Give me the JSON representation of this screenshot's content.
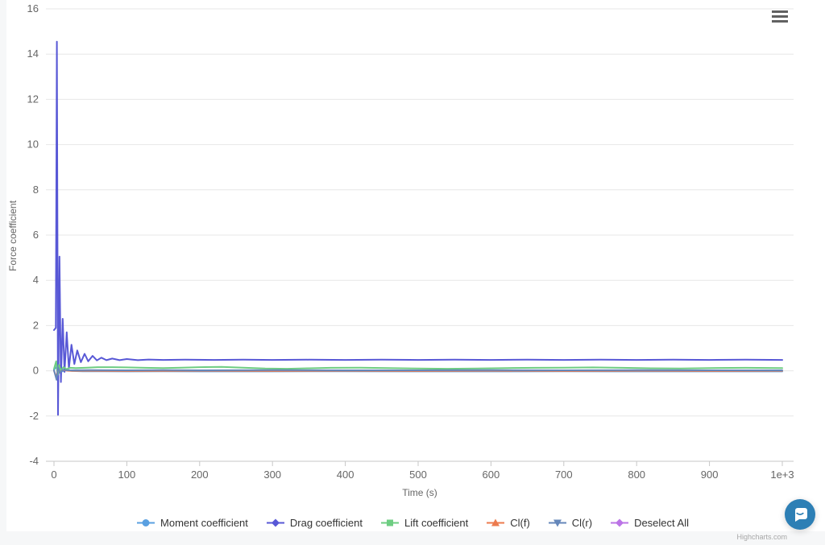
{
  "page": {
    "background_color": "#f6f7f8",
    "card_color": "#ffffff"
  },
  "chart": {
    "credits": "Highcharts.com",
    "menu_icon": "hamburger-icon",
    "gridline_color": "#e7e7e7",
    "axis_line_color": "#c7c7c7",
    "tick_label_color": "#666666",
    "axis_title_color": "#666666",
    "legend_text_color": "#333333"
  },
  "chat": {
    "icon": "chat-bubble-smile-icon",
    "color": "#2d7fb5"
  },
  "chart_data": {
    "type": "line",
    "title": "",
    "xlabel": "Time (s)",
    "ylabel": "Force coefficient",
    "xlim": [
      0,
      1000
    ],
    "ylim": [
      -4,
      16
    ],
    "grid": "horizontal",
    "legend_position": "bottom",
    "y_ticks": [
      16,
      14,
      12,
      10,
      8,
      6,
      4,
      2,
      0,
      -2,
      -4
    ],
    "x_ticks": [
      {
        "value": 0,
        "label": "0"
      },
      {
        "value": 100,
        "label": "100"
      },
      {
        "value": 200,
        "label": "200"
      },
      {
        "value": 300,
        "label": "300"
      },
      {
        "value": 400,
        "label": "400"
      },
      {
        "value": 500,
        "label": "500"
      },
      {
        "value": 600,
        "label": "600"
      },
      {
        "value": 700,
        "label": "700"
      },
      {
        "value": 800,
        "label": "800"
      },
      {
        "value": 900,
        "label": "900"
      },
      {
        "value": 1000,
        "label": "1e+3"
      }
    ],
    "series": [
      {
        "name": "Moment coefficient",
        "color": "#5aa0e1",
        "marker": "circle",
        "points": [
          [
            0,
            0.05
          ],
          [
            3.5,
            0.18
          ],
          [
            5.5,
            -0.12
          ],
          [
            8,
            0.08
          ],
          [
            11,
            -0.03
          ],
          [
            16,
            0.02
          ],
          [
            25,
            -0.01
          ],
          [
            40,
            -0.02
          ],
          [
            70,
            -0.02
          ],
          [
            100,
            -0.03
          ],
          [
            150,
            -0.02
          ],
          [
            200,
            -0.03
          ],
          [
            300,
            -0.03
          ],
          [
            400,
            -0.02
          ],
          [
            500,
            -0.03
          ],
          [
            600,
            -0.03
          ],
          [
            700,
            -0.02
          ],
          [
            800,
            -0.03
          ],
          [
            900,
            -0.03
          ],
          [
            1000,
            -0.03
          ]
        ]
      },
      {
        "name": "Drag coefficient",
        "color": "#5858d6",
        "marker": "diamond",
        "points": [
          [
            0,
            1.8
          ],
          [
            2.5,
            1.9
          ],
          [
            4,
            14.55
          ],
          [
            5.5,
            -1.95
          ],
          [
            7.5,
            5.05
          ],
          [
            9.5,
            -0.5
          ],
          [
            12,
            2.3
          ],
          [
            14.5,
            -0.05
          ],
          [
            17.5,
            1.7
          ],
          [
            20.5,
            0.1
          ],
          [
            24,
            1.15
          ],
          [
            28,
            0.3
          ],
          [
            32,
            0.9
          ],
          [
            37,
            0.38
          ],
          [
            42,
            0.75
          ],
          [
            47,
            0.42
          ],
          [
            53,
            0.66
          ],
          [
            59,
            0.46
          ],
          [
            65,
            0.58
          ],
          [
            72,
            0.47
          ],
          [
            80,
            0.54
          ],
          [
            90,
            0.47
          ],
          [
            100,
            0.52
          ],
          [
            115,
            0.47
          ],
          [
            130,
            0.5
          ],
          [
            150,
            0.48
          ],
          [
            180,
            0.49
          ],
          [
            220,
            0.48
          ],
          [
            260,
            0.49
          ],
          [
            300,
            0.48
          ],
          [
            350,
            0.49
          ],
          [
            400,
            0.48
          ],
          [
            450,
            0.49
          ],
          [
            500,
            0.48
          ],
          [
            550,
            0.49
          ],
          [
            600,
            0.48
          ],
          [
            650,
            0.49
          ],
          [
            700,
            0.48
          ],
          [
            750,
            0.49
          ],
          [
            800,
            0.48
          ],
          [
            850,
            0.49
          ],
          [
            900,
            0.48
          ],
          [
            950,
            0.49
          ],
          [
            1000,
            0.48
          ]
        ]
      },
      {
        "name": "Lift coefficient",
        "color": "#6ecd82",
        "marker": "square",
        "points": [
          [
            0,
            0.08
          ],
          [
            3,
            0.42
          ],
          [
            5,
            -0.18
          ],
          [
            7,
            0.26
          ],
          [
            9.5,
            0.0
          ],
          [
            13,
            0.16
          ],
          [
            17,
            0.07
          ],
          [
            22,
            0.13
          ],
          [
            30,
            0.12
          ],
          [
            45,
            0.14
          ],
          [
            60,
            0.16
          ],
          [
            80,
            0.16
          ],
          [
            100,
            0.15
          ],
          [
            125,
            0.13
          ],
          [
            150,
            0.12
          ],
          [
            175,
            0.14
          ],
          [
            200,
            0.16
          ],
          [
            230,
            0.17
          ],
          [
            260,
            0.14
          ],
          [
            290,
            0.1
          ],
          [
            320,
            0.09
          ],
          [
            350,
            0.11
          ],
          [
            380,
            0.13
          ],
          [
            420,
            0.14
          ],
          [
            460,
            0.12
          ],
          [
            500,
            0.1
          ],
          [
            540,
            0.09
          ],
          [
            580,
            0.1
          ],
          [
            620,
            0.12
          ],
          [
            660,
            0.13
          ],
          [
            700,
            0.14
          ],
          [
            740,
            0.15
          ],
          [
            780,
            0.13
          ],
          [
            820,
            0.11
          ],
          [
            860,
            0.1
          ],
          [
            900,
            0.12
          ],
          [
            950,
            0.13
          ],
          [
            1000,
            0.12
          ]
        ]
      },
      {
        "name": "Cl(f)",
        "color": "#ec7b4e",
        "marker": "triangle",
        "points": [
          [
            0,
            0.0
          ],
          [
            3.5,
            -0.28
          ],
          [
            5.5,
            0.12
          ],
          [
            8,
            -0.06
          ],
          [
            12,
            0.03
          ],
          [
            20,
            0.0
          ],
          [
            50,
            0.0
          ],
          [
            100,
            -0.01
          ],
          [
            200,
            0.0
          ],
          [
            300,
            -0.01
          ],
          [
            400,
            0.0
          ],
          [
            500,
            -0.01
          ],
          [
            600,
            0.0
          ],
          [
            700,
            -0.01
          ],
          [
            800,
            0.0
          ],
          [
            900,
            -0.01
          ],
          [
            1000,
            0.0
          ]
        ]
      },
      {
        "name": "Cl(r)",
        "color": "#6587ba",
        "marker": "triangle-down",
        "points": [
          [
            0,
            0.02
          ],
          [
            3.5,
            -0.4
          ],
          [
            5.5,
            0.16
          ],
          [
            8,
            -0.09
          ],
          [
            12,
            0.04
          ],
          [
            20,
            0.02
          ],
          [
            50,
            0.03
          ],
          [
            100,
            0.02
          ],
          [
            150,
            0.03
          ],
          [
            200,
            0.02
          ],
          [
            300,
            0.03
          ],
          [
            400,
            0.02
          ],
          [
            500,
            0.02
          ],
          [
            600,
            0.03
          ],
          [
            700,
            0.02
          ],
          [
            800,
            0.03
          ],
          [
            900,
            0.02
          ],
          [
            1000,
            0.02
          ]
        ]
      },
      {
        "name": "Deselect All",
        "color": "#bb74e6",
        "marker": "diamond",
        "points": []
      }
    ]
  }
}
